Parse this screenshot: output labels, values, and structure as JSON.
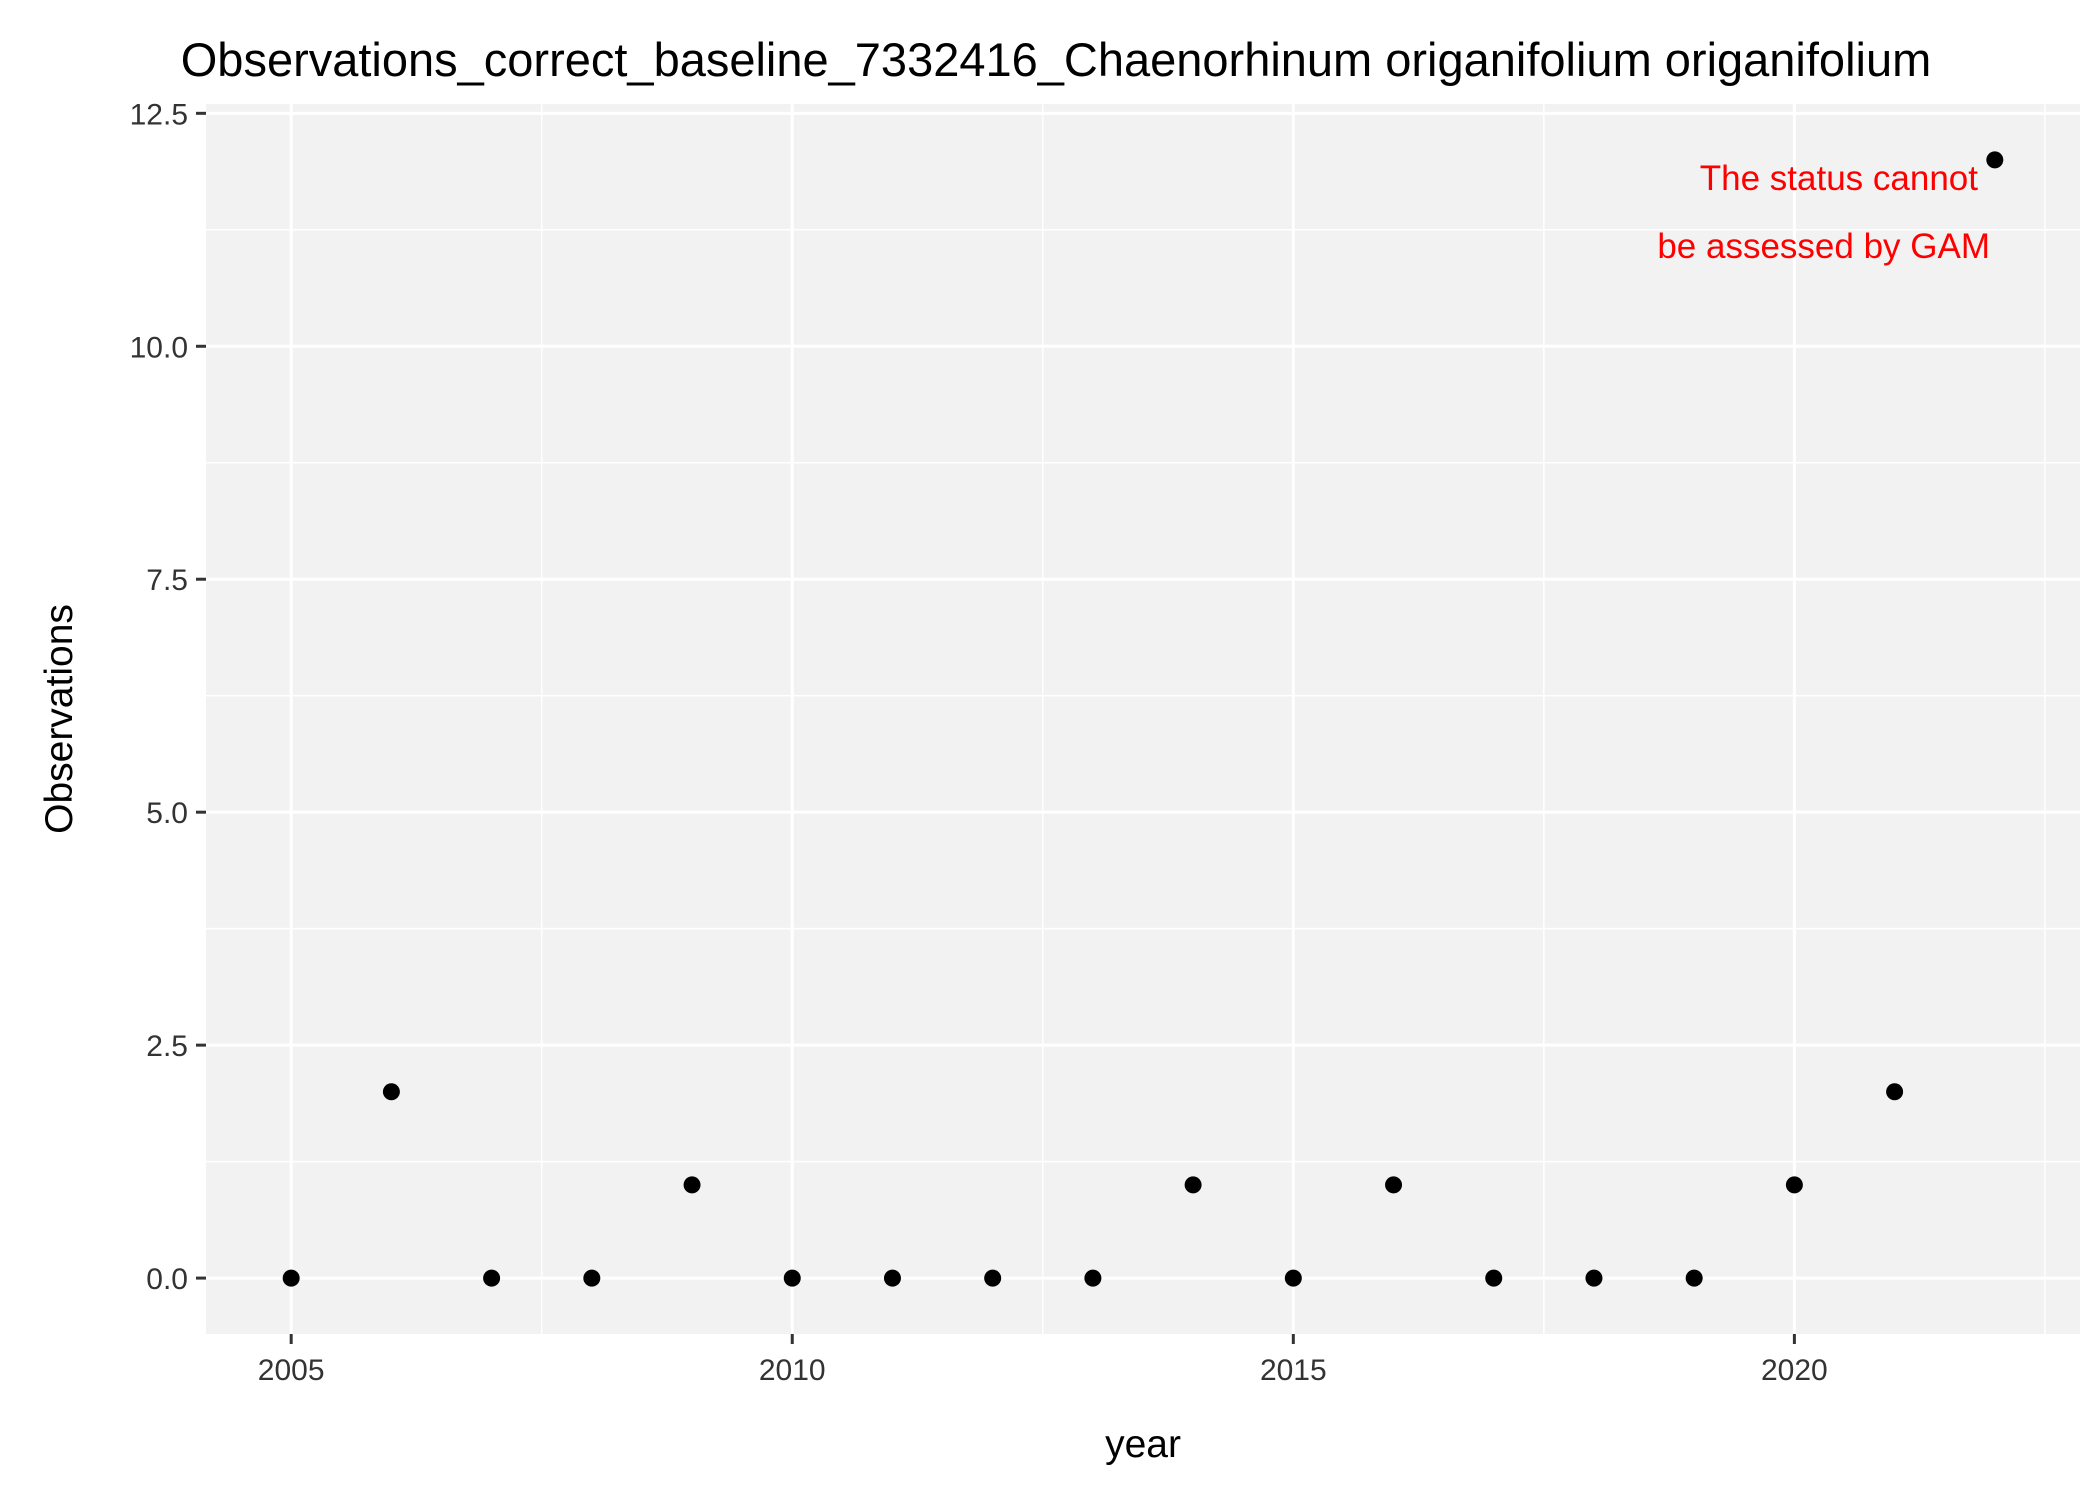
{
  "chart_data": {
    "type": "scatter",
    "title": "Observations_correct_baseline_7332416_Chaenorhinum origanifolium origanifolium",
    "xlabel": "year",
    "ylabel": "Observations",
    "x": [
      2005,
      2006,
      2007,
      2008,
      2009,
      2010,
      2011,
      2012,
      2013,
      2014,
      2015,
      2016,
      2017,
      2018,
      2019,
      2020,
      2021,
      2022
    ],
    "y": [
      0,
      2,
      0,
      0,
      1,
      0,
      0,
      0,
      0,
      1,
      0,
      1,
      0,
      0,
      0,
      1,
      2,
      12
    ],
    "xlim": [
      2004.15,
      2022.85
    ],
    "ylim": [
      -0.6,
      12.6
    ],
    "x_ticks": [
      "2005",
      "2010",
      "2015",
      "2020"
    ],
    "y_ticks": [
      "0.0",
      "2.5",
      "5.0",
      "7.5",
      "10.0",
      "12.5"
    ],
    "grid": true,
    "point_color": "#000000",
    "panel_background": "#f2f2f2",
    "annotation": {
      "lines": [
        "The status cannot",
        "be assessed by GAM"
      ],
      "color": "#ff0000"
    }
  }
}
